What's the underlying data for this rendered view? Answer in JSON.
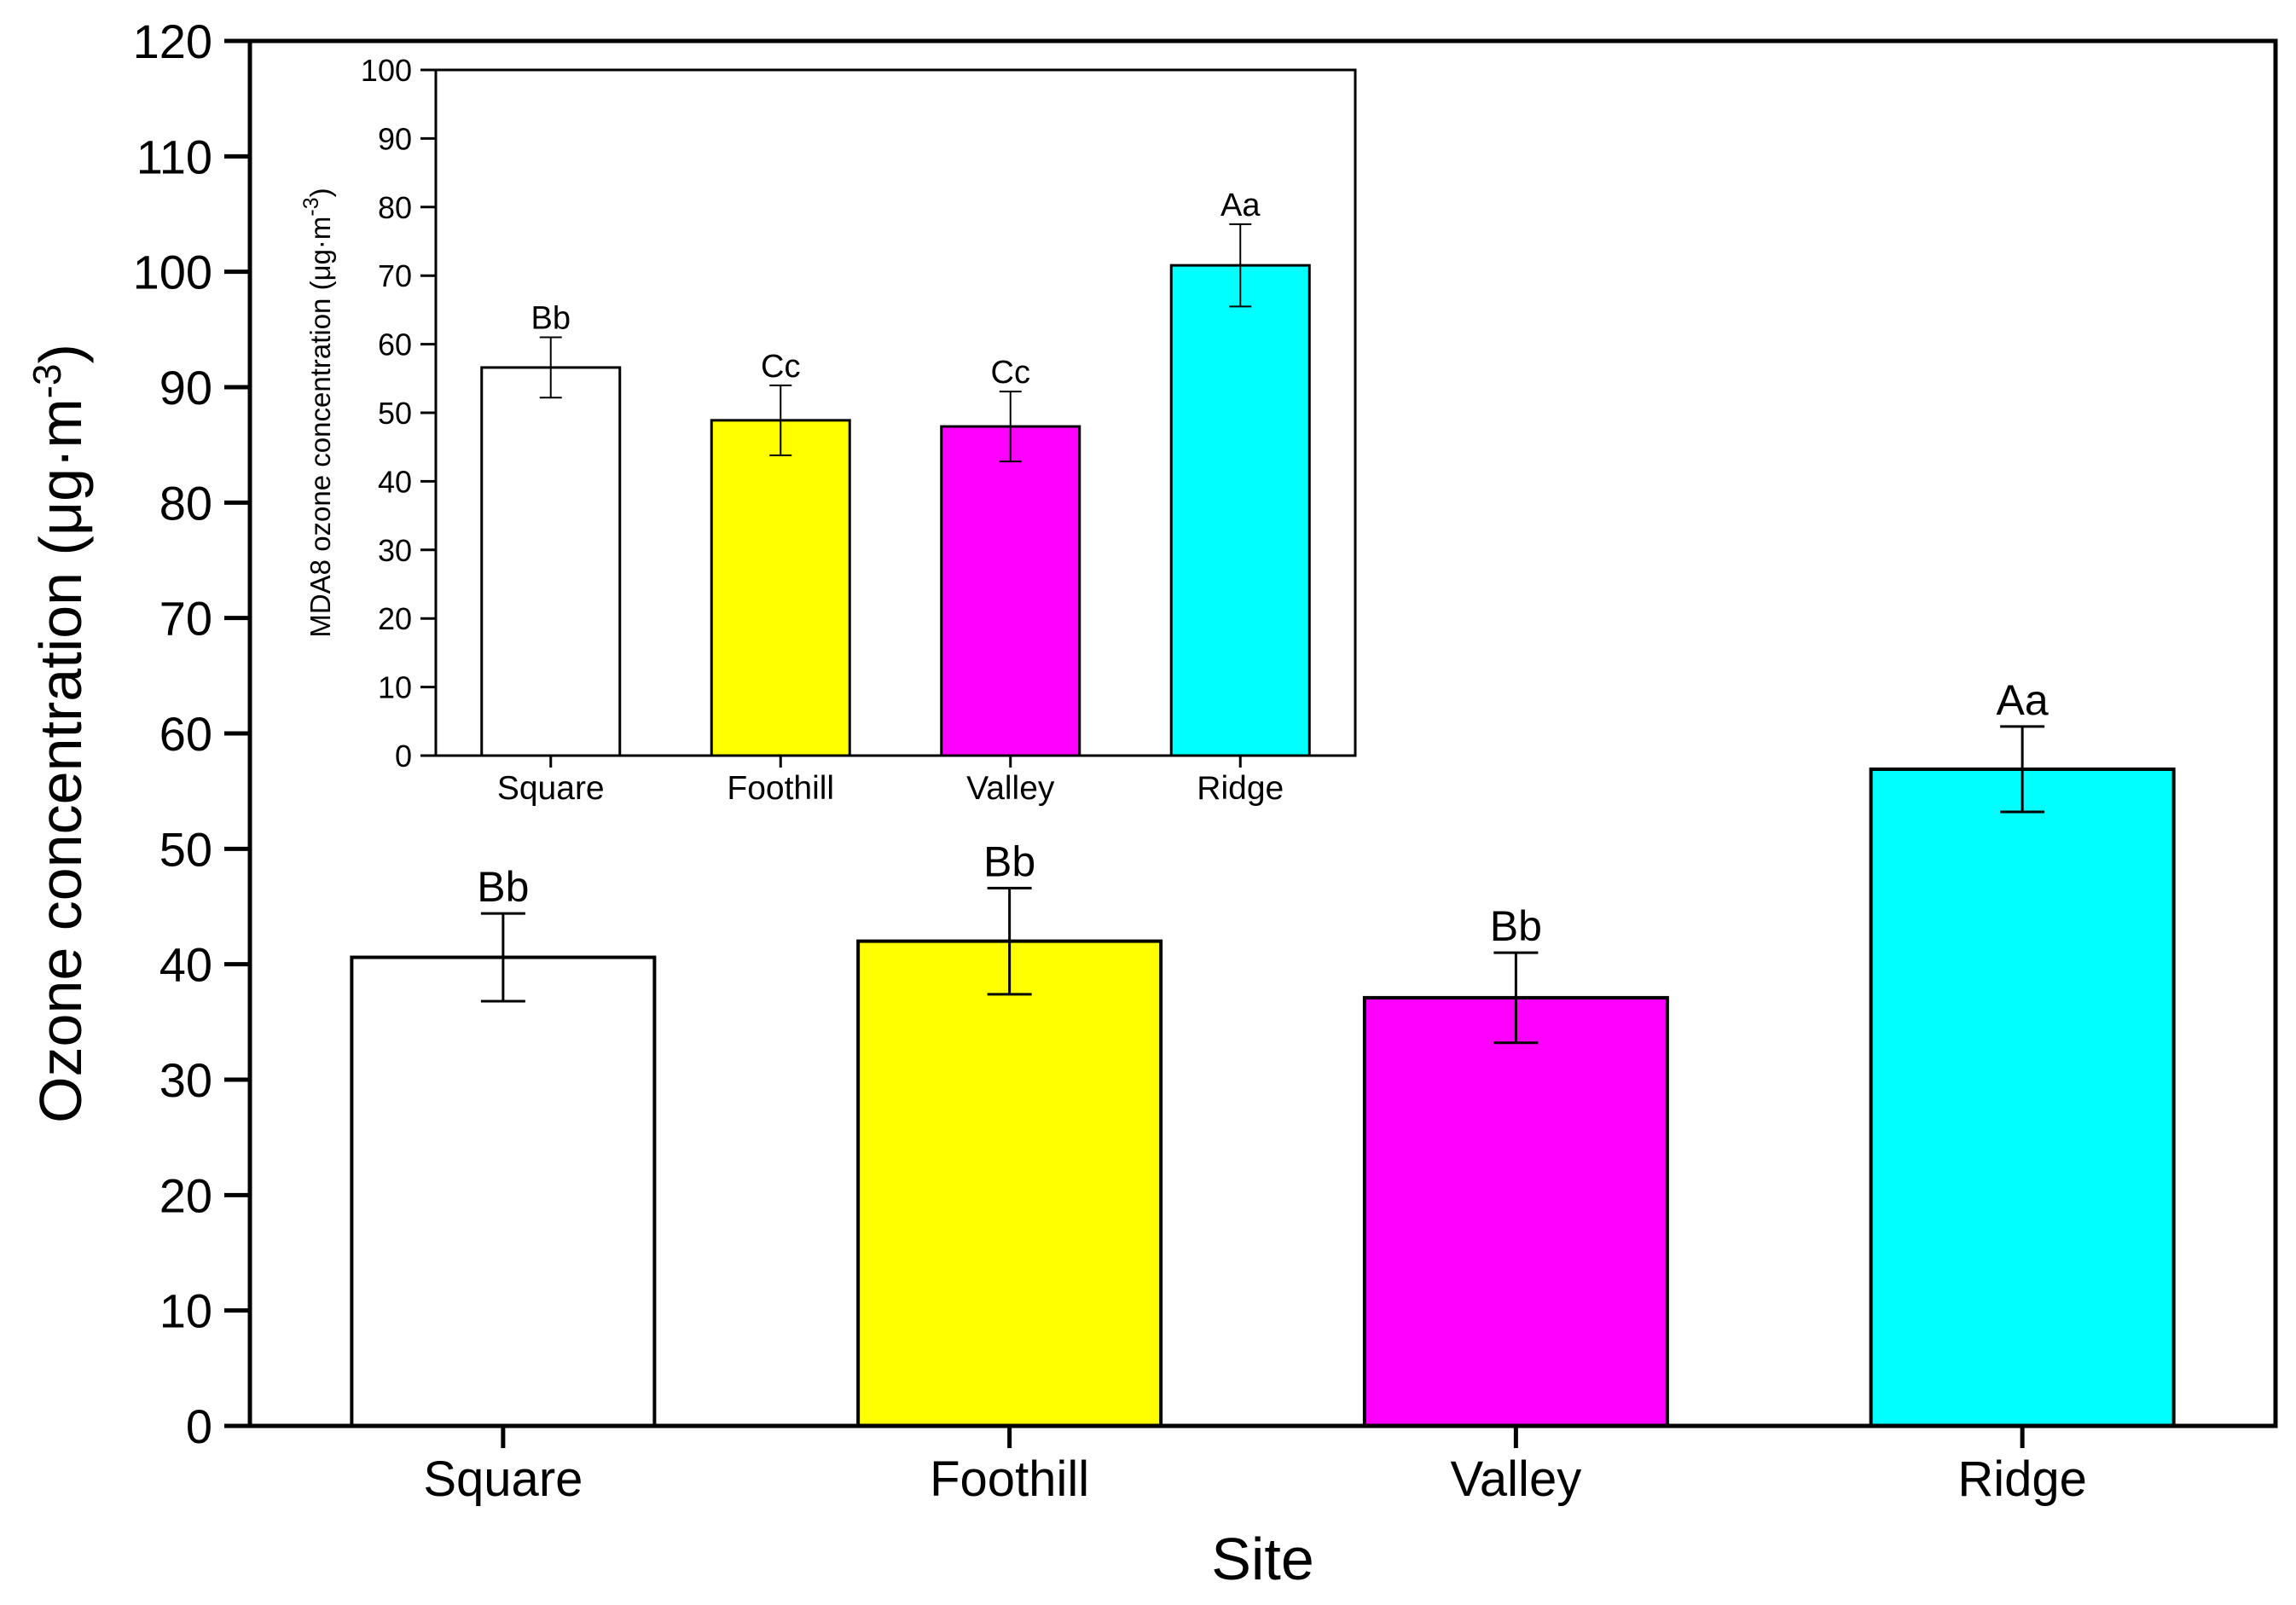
{
  "chart_data": [
    {
      "type": "bar",
      "categories": [
        "Square",
        "Foothill",
        "Valley",
        "Ridge"
      ],
      "series": [
        {
          "values": [
            40.6,
            42.0,
            37.1,
            56.9
          ],
          "errors": [
            3.8,
            4.6,
            3.9,
            3.7
          ],
          "significance": [
            "Bb",
            "Bb",
            "Bb",
            "Aa"
          ]
        }
      ],
      "bar_colors": [
        "#ffffff",
        "#ffff00",
        "#ff00ff",
        "#00ffff"
      ],
      "xlabel": "Site",
      "ylabel": "Ozone concentration (μg·m",
      "ylabel_sup": "-3",
      "ylabel_close": ")",
      "ylim": [
        0,
        120
      ],
      "yticks": [
        0,
        10,
        20,
        30,
        40,
        50,
        60,
        70,
        80,
        90,
        100,
        110,
        120
      ],
      "grid": false
    },
    {
      "type": "bar",
      "role": "inset",
      "categories": [
        "Square",
        "Foothill",
        "Valley",
        "Ridge"
      ],
      "series": [
        {
          "values": [
            56.6,
            48.9,
            48.0,
            71.5
          ],
          "errors": [
            4.4,
            5.1,
            5.1,
            6.0
          ],
          "significance": [
            "Bb",
            "Cc",
            "Cc",
            "Aa"
          ]
        }
      ],
      "bar_colors": [
        "#ffffff",
        "#ffff00",
        "#ff00ff",
        "#00ffff"
      ],
      "xlabel": "",
      "ylabel": "MDA8 ozone concentration (μg·m",
      "ylabel_sup": "-3",
      "ylabel_close": ")",
      "ylim": [
        0,
        100
      ],
      "yticks": [
        0,
        10,
        20,
        30,
        40,
        50,
        60,
        70,
        80,
        90,
        100
      ],
      "grid": false
    }
  ]
}
